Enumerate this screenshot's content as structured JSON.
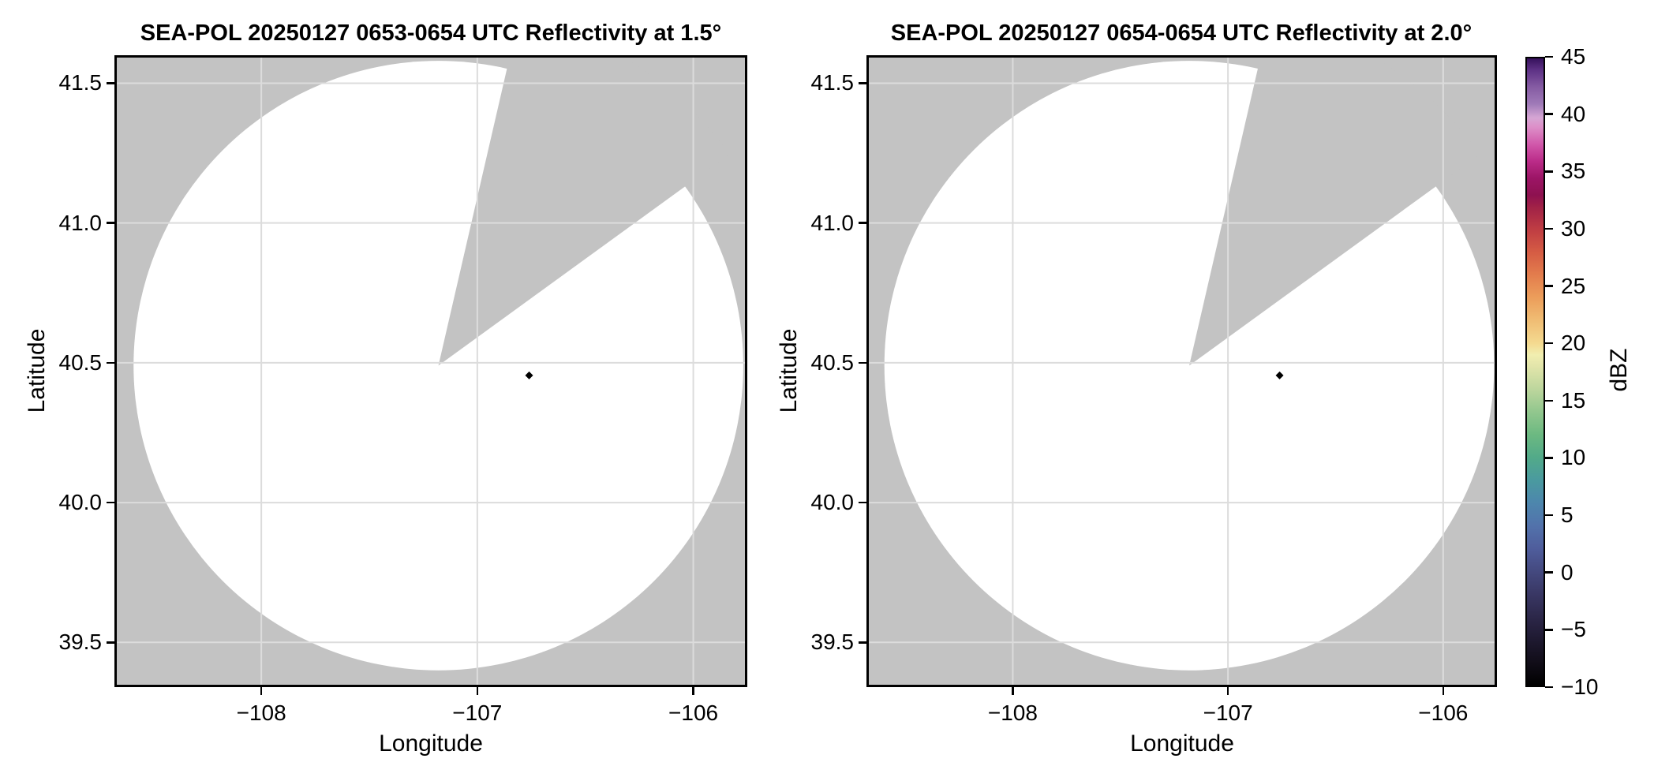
{
  "figure": {
    "background": "#ffffff",
    "description": "Two-panel radar PPI reflectivity figure with shared colorbar"
  },
  "chart_data": [
    {
      "type": "radar_ppi",
      "title": "SEA-POL 20250127 0653-0654 UTC Reflectivity at 1.5°",
      "xlabel": "Longitude",
      "ylabel": "Latitude",
      "xlim": [
        -108.68,
        -105.75
      ],
      "ylim": [
        39.34,
        41.6
      ],
      "xticks": [
        -108,
        -107,
        -106
      ],
      "xtick_labels": [
        "−108",
        "−107",
        "−106"
      ],
      "yticks": [
        41.5,
        41.0,
        40.5,
        40.0,
        39.5
      ],
      "ytick_labels": [
        "41.5",
        "41.0",
        "40.5",
        "40.0",
        "39.5"
      ],
      "grid": true,
      "radar": {
        "center_lon": -107.18,
        "center_lat": 40.49,
        "scan_radius_deg_lat": 1.09,
        "missing_sector_azimuth_deg": [
          13,
          54
        ]
      },
      "echoes": [
        {
          "lon": -106.76,
          "lat": 40.455,
          "approx_dbz": -10,
          "color": "#000000"
        }
      ],
      "colors": {
        "no_data": "#c3c3c3",
        "scan_area": "#ffffff",
        "grid": "#dcdcdc",
        "frame": "#000000"
      }
    },
    {
      "type": "radar_ppi",
      "title": "SEA-POL 20250127 0654-0654 UTC Reflectivity at 2.0°",
      "xlabel": "Longitude",
      "ylabel": "Latitude",
      "xlim": [
        -108.68,
        -105.75
      ],
      "ylim": [
        39.34,
        41.6
      ],
      "xticks": [
        -108,
        -107,
        -106
      ],
      "xtick_labels": [
        "−108",
        "−107",
        "−106"
      ],
      "yticks": [
        41.5,
        41.0,
        40.5,
        40.0,
        39.5
      ],
      "ytick_labels": [
        "41.5",
        "41.0",
        "40.5",
        "40.0",
        "39.5"
      ],
      "grid": true,
      "radar": {
        "center_lon": -107.18,
        "center_lat": 40.49,
        "scan_radius_deg_lat": 1.09,
        "missing_sector_azimuth_deg": [
          13,
          54
        ]
      },
      "echoes": [
        {
          "lon": -106.76,
          "lat": 40.455,
          "approx_dbz": -10,
          "color": "#000000"
        }
      ],
      "colors": {
        "no_data": "#c3c3c3",
        "scan_area": "#ffffff",
        "grid": "#dcdcdc",
        "frame": "#000000"
      }
    }
  ],
  "colorbar": {
    "label": "dBZ",
    "min": -10,
    "max": 45,
    "ticks": [
      45,
      40,
      35,
      30,
      25,
      20,
      15,
      10,
      5,
      0,
      -5,
      -10
    ],
    "tick_labels": [
      "45",
      "40",
      "35",
      "30",
      "25",
      "20",
      "15",
      "10",
      "5",
      "0",
      "−5",
      "−10"
    ],
    "stops": [
      {
        "v": -10,
        "c": "#000000"
      },
      {
        "v": -8,
        "c": "#110d18"
      },
      {
        "v": -6,
        "c": "#1e1930"
      },
      {
        "v": -4,
        "c": "#2c2749"
      },
      {
        "v": -2,
        "c": "#393764"
      },
      {
        "v": 0,
        "c": "#44497f"
      },
      {
        "v": 2,
        "c": "#4f5d9c"
      },
      {
        "v": 4,
        "c": "#5272ab"
      },
      {
        "v": 6,
        "c": "#4d86ad"
      },
      {
        "v": 8,
        "c": "#4a9a9f"
      },
      {
        "v": 10,
        "c": "#52aa89"
      },
      {
        "v": 12,
        "c": "#6cb981"
      },
      {
        "v": 14,
        "c": "#92c78e"
      },
      {
        "v": 16,
        "c": "#bdd69d"
      },
      {
        "v": 18,
        "c": "#e2e5aa"
      },
      {
        "v": 19,
        "c": "#f1eeb0"
      },
      {
        "v": 20,
        "c": "#f4da90"
      },
      {
        "v": 22,
        "c": "#f0bd74"
      },
      {
        "v": 24,
        "c": "#ec9e5b"
      },
      {
        "v": 26,
        "c": "#e37d4d"
      },
      {
        "v": 28,
        "c": "#d55c44"
      },
      {
        "v": 30,
        "c": "#bf3d43"
      },
      {
        "v": 32,
        "c": "#a02147"
      },
      {
        "v": 33,
        "c": "#8e1150"
      },
      {
        "v": 34.5,
        "c": "#9c1566"
      },
      {
        "v": 36,
        "c": "#bb2c89"
      },
      {
        "v": 37.5,
        "c": "#d159ab"
      },
      {
        "v": 39,
        "c": "#dd90c9"
      },
      {
        "v": 39.8,
        "c": "#d5a6d4"
      },
      {
        "v": 41,
        "c": "#9f7ab8"
      },
      {
        "v": 42.5,
        "c": "#855ba3"
      },
      {
        "v": 44,
        "c": "#5d3185"
      },
      {
        "v": 45,
        "c": "#36115c"
      }
    ]
  }
}
